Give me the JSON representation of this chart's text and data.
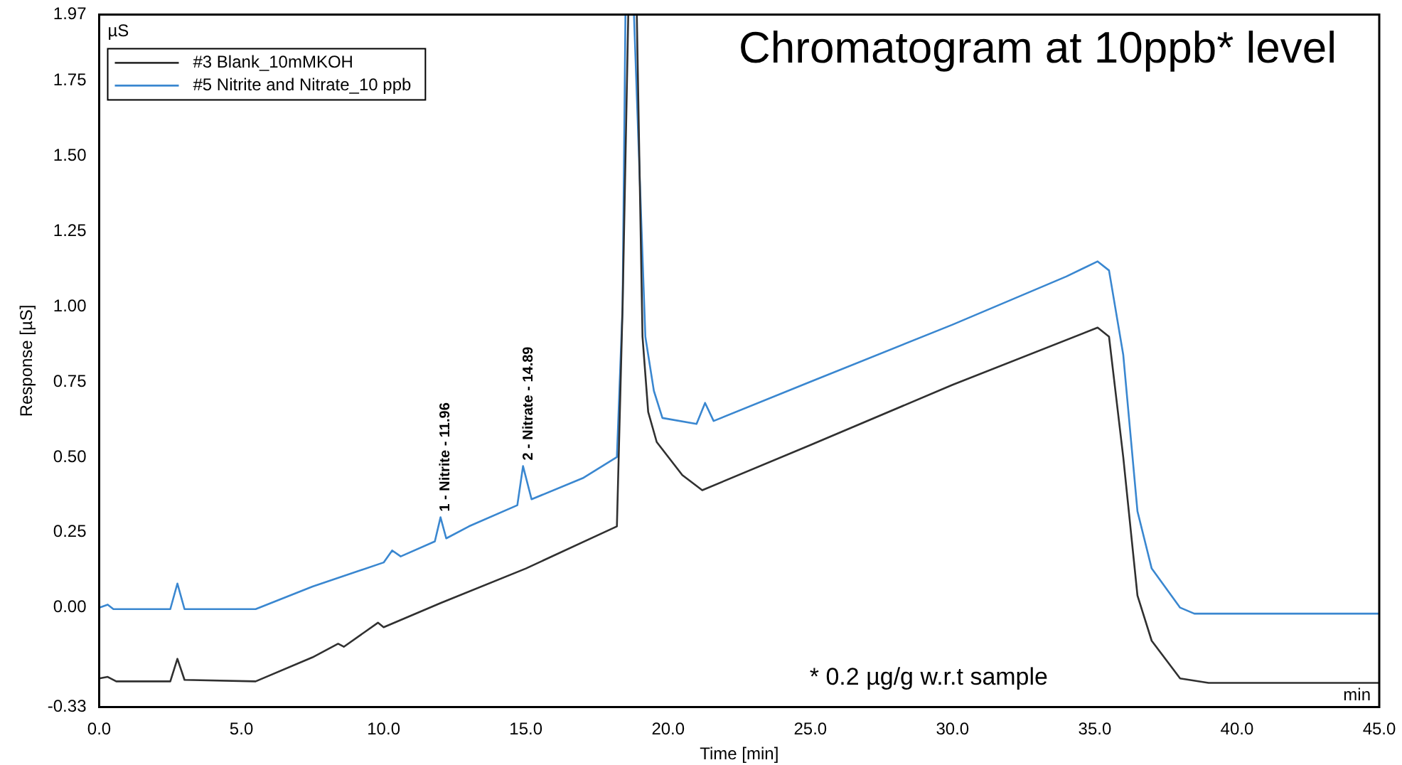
{
  "chart_data": {
    "type": "line",
    "title": "Chromatogram at 10ppb* level",
    "xlabel": "Time [min]",
    "ylabel": "Response [µS]",
    "xlim": [
      0,
      45
    ],
    "ylim": [
      -0.33,
      1.97
    ],
    "xticks": [
      {
        "value": 0,
        "label": "0.0"
      },
      {
        "value": 5,
        "label": "5.0"
      },
      {
        "value": 10,
        "label": "10.0"
      },
      {
        "value": 15,
        "label": "15.0"
      },
      {
        "value": 20,
        "label": "20.0"
      },
      {
        "value": 25,
        "label": "25.0"
      },
      {
        "value": 30,
        "label": "30.0"
      },
      {
        "value": 35,
        "label": "35.0"
      },
      {
        "value": 40,
        "label": "40.0"
      },
      {
        "value": 45,
        "label": "45.0"
      }
    ],
    "yticks": [
      {
        "value": -0.33,
        "label": "-0.33"
      },
      {
        "value": 0,
        "label": "0.00"
      },
      {
        "value": 0.25,
        "label": "0.25"
      },
      {
        "value": 0.5,
        "label": "0.50"
      },
      {
        "value": 0.75,
        "label": "0.75"
      },
      {
        "value": 1,
        "label": "1.00"
      },
      {
        "value": 1.25,
        "label": "1.25"
      },
      {
        "value": 1.5,
        "label": "1.50"
      },
      {
        "value": 1.75,
        "label": "1.75"
      },
      {
        "value": 1.97,
        "label": "1.97"
      }
    ],
    "grid": false,
    "legend": "top left",
    "marker": "none",
    "line_style": "solid",
    "series": [
      {
        "name": "#3 Blank_10mMKOH",
        "color": "#303030",
        "x": [
          0,
          0.3,
          0.6,
          2.5,
          2.75,
          3.0,
          5.5,
          7.5,
          8.4,
          8.6,
          9.8,
          10.0,
          12,
          15,
          18.2,
          18.4,
          18.6,
          18.9,
          19.1,
          19.3,
          19.6,
          20.5,
          21.2,
          25,
          30,
          35.1,
          35.5,
          36,
          36.5,
          37,
          38,
          39,
          45
        ],
        "values": [
          -0.235,
          -0.23,
          -0.245,
          -0.245,
          -0.17,
          -0.24,
          -0.245,
          -0.165,
          -0.12,
          -0.13,
          -0.05,
          -0.065,
          0.015,
          0.13,
          0.27,
          1.0,
          1.97,
          1.97,
          0.9,
          0.65,
          0.55,
          0.44,
          0.39,
          0.54,
          0.74,
          0.93,
          0.9,
          0.5,
          0.04,
          -0.11,
          -0.235,
          -0.25,
          -0.25
        ]
      },
      {
        "name": "#5 Nitrite and Nitrate_10 ppb",
        "color": "#3a87d0",
        "x": [
          0,
          0.3,
          0.5,
          2.5,
          2.75,
          3.0,
          5.5,
          7.5,
          10.0,
          10.3,
          10.6,
          11.8,
          12.0,
          12.2,
          13,
          14.7,
          14.9,
          15.2,
          17,
          18.2,
          18.4,
          18.5,
          18.8,
          19.2,
          19.5,
          19.8,
          21,
          21.3,
          21.6,
          25,
          30,
          34,
          35.1,
          35.5,
          36,
          36.5,
          37,
          38,
          38.5,
          45
        ],
        "values": [
          0,
          0.01,
          -0.005,
          -0.005,
          0.08,
          -0.005,
          -0.005,
          0.07,
          0.15,
          0.19,
          0.17,
          0.22,
          0.3,
          0.23,
          0.27,
          0.34,
          0.47,
          0.36,
          0.43,
          0.5,
          1.0,
          1.97,
          1.97,
          0.9,
          0.72,
          0.63,
          0.61,
          0.68,
          0.62,
          0.75,
          0.94,
          1.1,
          1.15,
          1.12,
          0.84,
          0.32,
          0.13,
          0.0,
          -0.02,
          -0.02
        ]
      }
    ],
    "annotations": [
      "µS",
      "min",
      "* 0.2 µg/g w.r.t sample",
      {
        "text": "1 - Nitrite - 11.96",
        "x": 11.96,
        "y": 0.3
      },
      {
        "text": "2 - Nitrate - 14.89",
        "x": 14.89,
        "y": 0.47
      }
    ]
  }
}
